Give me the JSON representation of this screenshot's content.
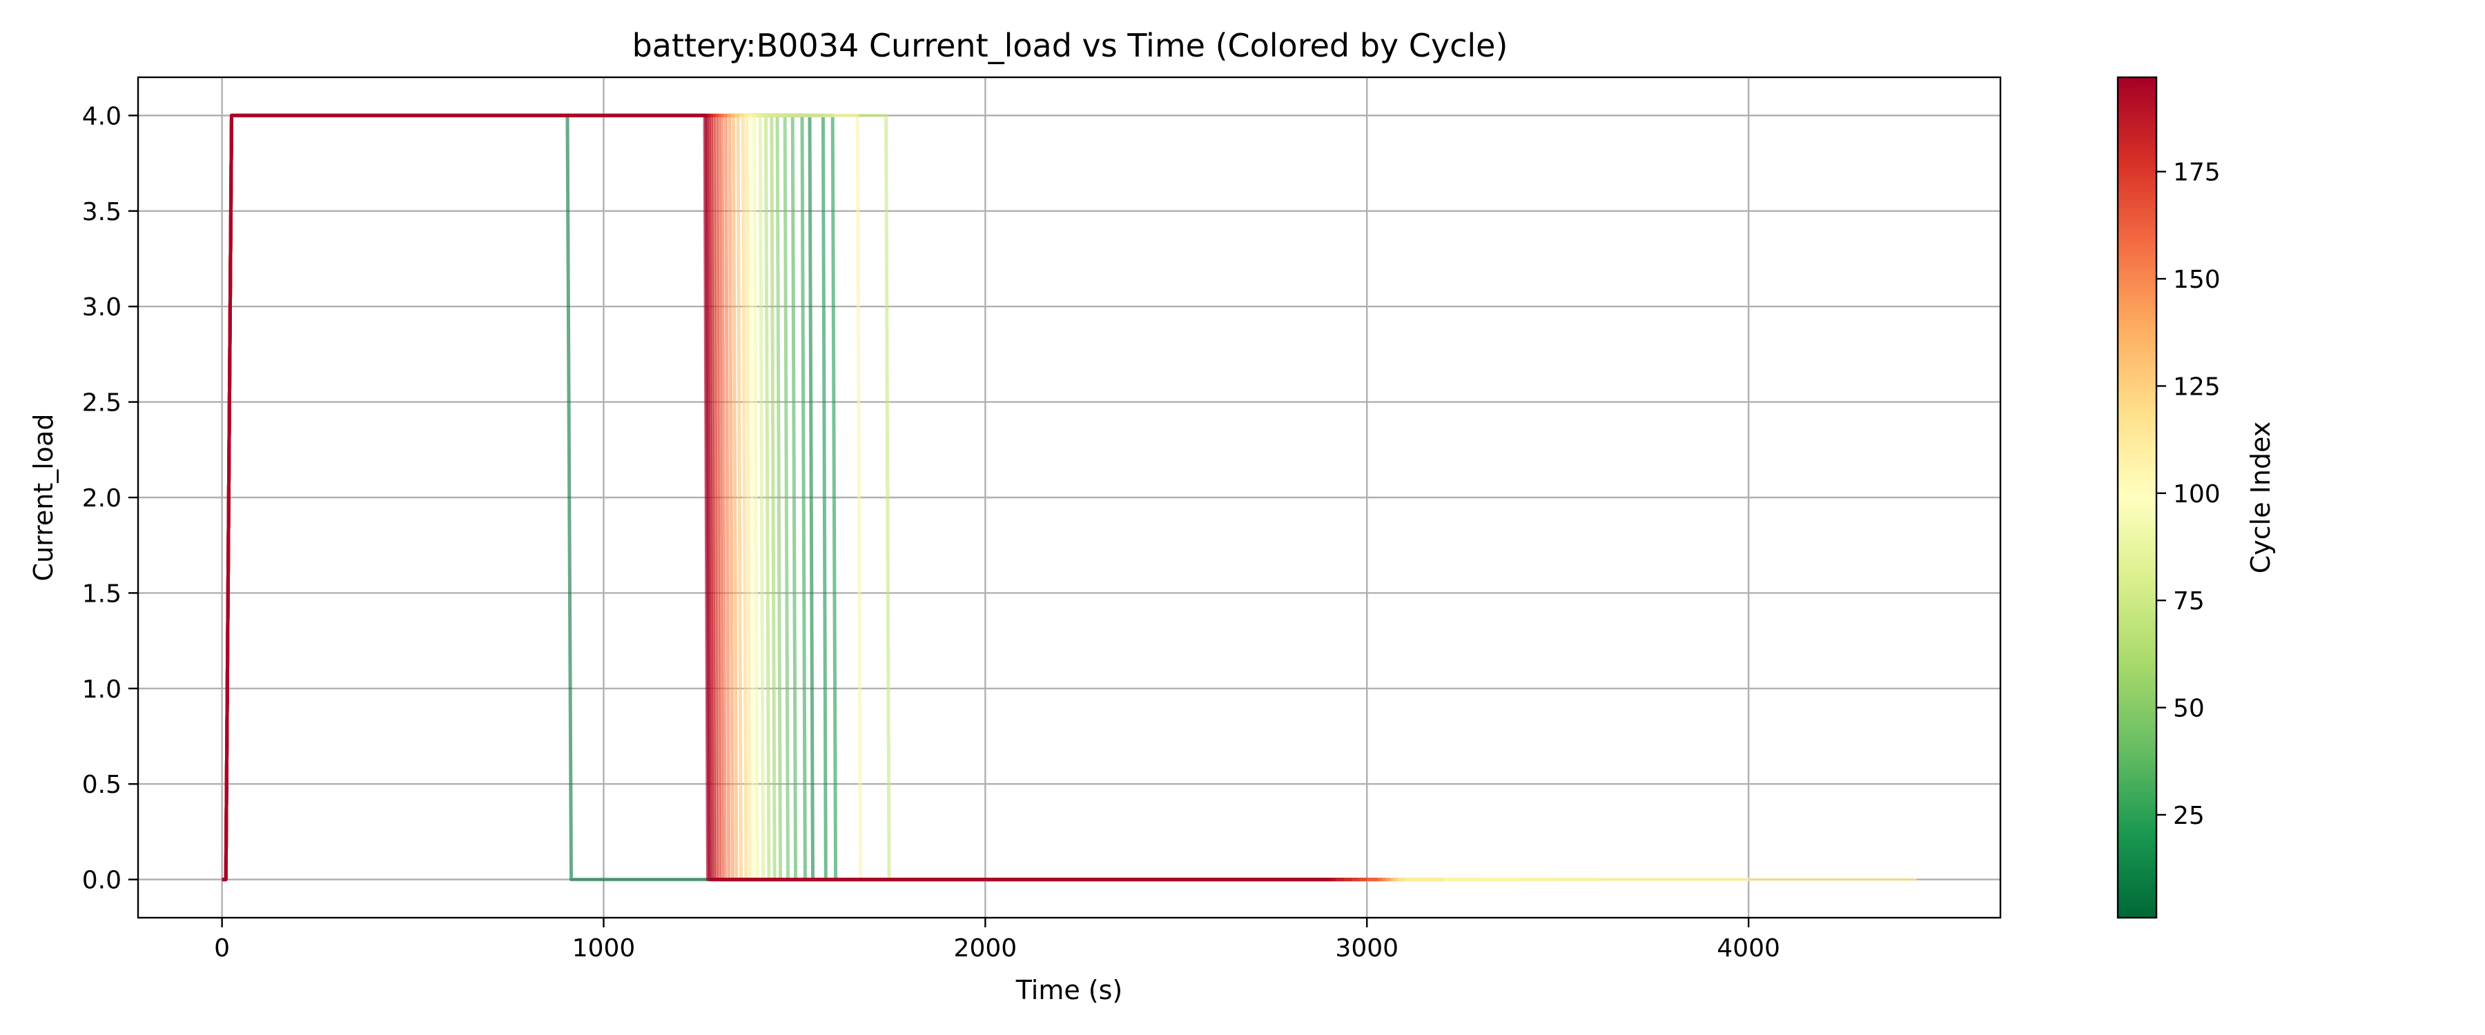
{
  "chart_data": {
    "type": "line",
    "title": "battery:B0034 Current_load vs Time (Colored by Cycle)",
    "xlabel": "Time (s)",
    "ylabel": "Current_load",
    "xlim": [
      -220,
      4660
    ],
    "ylim": [
      -0.2,
      4.2
    ],
    "xticks": [
      0,
      1000,
      2000,
      3000,
      4000
    ],
    "xtick_labels": [
      "0",
      "1000",
      "2000",
      "3000",
      "4000"
    ],
    "yticks": [
      0.0,
      0.5,
      1.0,
      1.5,
      2.0,
      2.5,
      3.0,
      3.5,
      4.0
    ],
    "ytick_labels": [
      "0.0",
      "0.5",
      "1.0",
      "1.5",
      "2.0",
      "2.5",
      "3.0",
      "3.5",
      "4.0"
    ],
    "grid": true,
    "colormap": "RdYlGn_r",
    "colorbar": {
      "label": "Cycle Index",
      "range": [
        1,
        197
      ],
      "ticks": [
        25,
        50,
        75,
        100,
        125,
        150,
        175
      ],
      "tick_labels": [
        "25",
        "50",
        "75",
        "100",
        "125",
        "150",
        "175"
      ],
      "colors_low_to_high": [
        "#006837",
        "#1a9850",
        "#66bd63",
        "#a6d96a",
        "#d9ef8b",
        "#ffffbf",
        "#fee08b",
        "#fdae61",
        "#f46d43",
        "#d73027",
        "#a50026"
      ]
    },
    "series": [
      {
        "cycle": 5,
        "x": [
          0,
          10,
          25,
          905,
          915,
          1280,
          2000
        ],
        "y": [
          0,
          0,
          4,
          4,
          0,
          0,
          0
        ]
      },
      {
        "cycle": 12,
        "x": [
          0,
          10,
          25,
          1540,
          1548,
          2600
        ],
        "y": [
          0,
          0,
          4,
          4,
          0,
          0
        ]
      },
      {
        "cycle": 18,
        "x": [
          0,
          10,
          25,
          1575,
          1582,
          2800
        ],
        "y": [
          0,
          0,
          4,
          4,
          0,
          0
        ]
      },
      {
        "cycle": 22,
        "x": [
          0,
          10,
          25,
          1600,
          1608,
          3000
        ],
        "y": [
          0,
          0,
          4,
          4,
          0,
          0
        ]
      },
      {
        "cycle": 28,
        "x": [
          0,
          10,
          25,
          1520,
          1528,
          3050
        ],
        "y": [
          0,
          0,
          4,
          4,
          0,
          0
        ]
      },
      {
        "cycle": 35,
        "x": [
          0,
          10,
          25,
          1495,
          1503,
          3150
        ],
        "y": [
          0,
          0,
          4,
          4,
          0,
          0
        ]
      },
      {
        "cycle": 42,
        "x": [
          0,
          10,
          25,
          1475,
          1483,
          3200
        ],
        "y": [
          0,
          0,
          4,
          4,
          0,
          0
        ]
      },
      {
        "cycle": 50,
        "x": [
          0,
          10,
          25,
          1455,
          1463,
          3270
        ],
        "y": [
          0,
          0,
          4,
          4,
          0,
          0
        ]
      },
      {
        "cycle": 58,
        "x": [
          0,
          10,
          25,
          1440,
          1448,
          3100
        ],
        "y": [
          0,
          0,
          4,
          4,
          0,
          0
        ]
      },
      {
        "cycle": 65,
        "x": [
          0,
          10,
          25,
          1425,
          1433,
          3300
        ],
        "y": [
          0,
          0,
          4,
          4,
          0,
          0
        ]
      },
      {
        "cycle": 72,
        "x": [
          0,
          10,
          25,
          1740,
          1748,
          3610
        ],
        "y": [
          0,
          0,
          4,
          4,
          0,
          0
        ]
      },
      {
        "cycle": 80,
        "x": [
          0,
          10,
          25,
          1410,
          1418,
          3400
        ],
        "y": [
          0,
          0,
          4,
          4,
          0,
          0
        ]
      },
      {
        "cycle": 90,
        "x": [
          0,
          10,
          25,
          1395,
          1403,
          3500
        ],
        "y": [
          0,
          0,
          4,
          4,
          0,
          0
        ]
      },
      {
        "cycle": 100,
        "x": [
          0,
          10,
          25,
          1385,
          1393,
          4000
        ],
        "y": [
          0,
          0,
          4,
          4,
          0,
          0
        ]
      },
      {
        "cycle": 108,
        "x": [
          0,
          10,
          25,
          1665,
          1673,
          4440
        ],
        "y": [
          0,
          0,
          4,
          4,
          0,
          0
        ]
      },
      {
        "cycle": 115,
        "x": [
          0,
          10,
          25,
          1375,
          1383,
          3200
        ],
        "y": [
          0,
          0,
          4,
          4,
          0,
          0
        ]
      },
      {
        "cycle": 122,
        "x": [
          0,
          10,
          25,
          1365,
          1373,
          3100
        ],
        "y": [
          0,
          0,
          4,
          4,
          0,
          0
        ]
      },
      {
        "cycle": 130,
        "x": [
          0,
          10,
          25,
          1352,
          1360,
          3080
        ],
        "y": [
          0,
          0,
          4,
          4,
          0,
          0
        ]
      },
      {
        "cycle": 138,
        "x": [
          0,
          10,
          25,
          1340,
          1348,
          3070
        ],
        "y": [
          0,
          0,
          4,
          4,
          0,
          0
        ]
      },
      {
        "cycle": 146,
        "x": [
          0,
          10,
          25,
          1330,
          1338,
          3060
        ],
        "y": [
          0,
          0,
          4,
          4,
          0,
          0
        ]
      },
      {
        "cycle": 154,
        "x": [
          0,
          10,
          25,
          1320,
          1328,
          3050
        ],
        "y": [
          0,
          0,
          4,
          4,
          0,
          0
        ]
      },
      {
        "cycle": 160,
        "x": [
          0,
          10,
          25,
          1310,
          1318,
          3040
        ],
        "y": [
          0,
          0,
          4,
          4,
          0,
          0
        ]
      },
      {
        "cycle": 166,
        "x": [
          0,
          10,
          25,
          1302,
          1310,
          3030
        ],
        "y": [
          0,
          0,
          4,
          4,
          0,
          0
        ]
      },
      {
        "cycle": 172,
        "x": [
          0,
          10,
          25,
          1295,
          1303,
          3000
        ],
        "y": [
          0,
          0,
          4,
          4,
          0,
          0
        ]
      },
      {
        "cycle": 178,
        "x": [
          0,
          10,
          25,
          1288,
          1296,
          2980
        ],
        "y": [
          0,
          0,
          4,
          4,
          0,
          0
        ]
      },
      {
        "cycle": 183,
        "x": [
          0,
          10,
          25,
          1282,
          1290,
          2960
        ],
        "y": [
          0,
          0,
          4,
          4,
          0,
          0
        ]
      },
      {
        "cycle": 188,
        "x": [
          0,
          10,
          25,
          1277,
          1285,
          2940
        ],
        "y": [
          0,
          0,
          4,
          4,
          0,
          0
        ]
      },
      {
        "cycle": 192,
        "x": [
          0,
          10,
          25,
          1272,
          1280,
          2920
        ],
        "y": [
          0,
          0,
          4,
          4,
          0,
          0
        ]
      },
      {
        "cycle": 195,
        "x": [
          0,
          10,
          25,
          1268,
          1276,
          2910
        ],
        "y": [
          0,
          0,
          4,
          4,
          0,
          0
        ]
      },
      {
        "cycle": 197,
        "x": [
          0,
          10,
          25,
          1265,
          1273,
          2900
        ],
        "y": [
          0,
          0,
          4,
          4,
          0,
          0
        ]
      }
    ]
  }
}
